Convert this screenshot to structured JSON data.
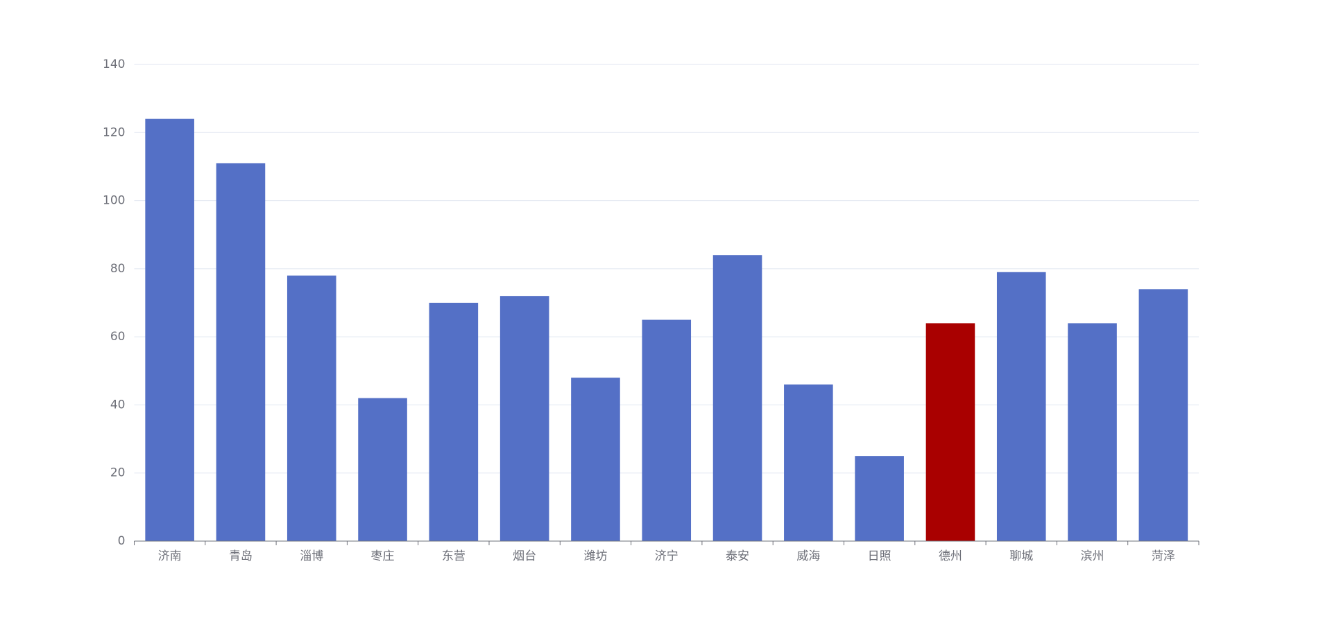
{
  "chart_data": {
    "type": "bar",
    "categories": [
      "济南",
      "青岛",
      "淄博",
      "枣庄",
      "东营",
      "烟台",
      "潍坊",
      "济宁",
      "泰安",
      "威海",
      "日照",
      "德州",
      "聊城",
      "滨州",
      "菏泽"
    ],
    "values": [
      124,
      111,
      78,
      42,
      70,
      72,
      48,
      65,
      84,
      46,
      25,
      64,
      79,
      64,
      74
    ],
    "colors": [
      "#5470c6",
      "#5470c6",
      "#5470c6",
      "#5470c6",
      "#5470c6",
      "#5470c6",
      "#5470c6",
      "#5470c6",
      "#5470c6",
      "#5470c6",
      "#5470c6",
      "#a90000",
      "#5470c6",
      "#5470c6",
      "#5470c6"
    ],
    "ylim": [
      0,
      140
    ],
    "yticks": [
      0,
      20,
      40,
      60,
      80,
      100,
      120,
      140
    ],
    "grid": true
  }
}
